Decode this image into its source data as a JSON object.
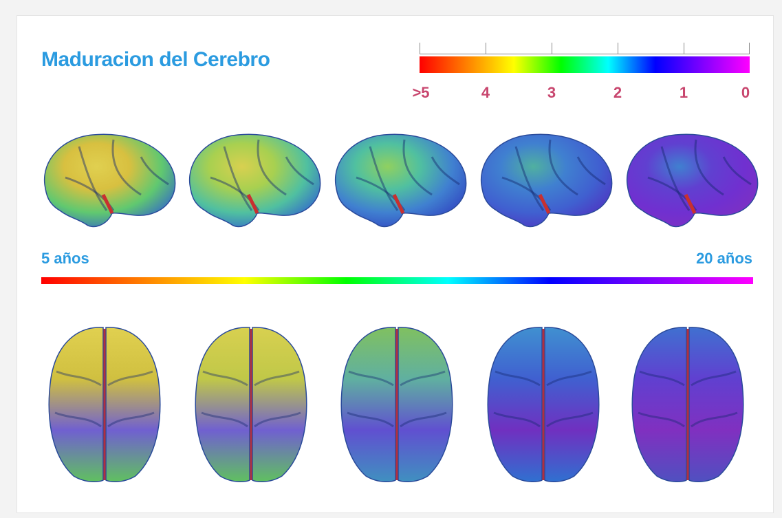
{
  "title": "Maduracion del Cerebro",
  "scale": {
    "labels": [
      ">5",
      "4",
      "3",
      "2",
      "1",
      "0"
    ],
    "gradient": [
      "#ff0000",
      "#ff8000",
      "#ffff00",
      "#00ff00",
      "#00ffff",
      "#0000ff",
      "#8000ff",
      "#ff00ff"
    ]
  },
  "ages": {
    "start": "5 años",
    "end": "20 años"
  },
  "colors": {
    "title": "#2b9be0",
    "scale_labels": "#c8466e",
    "age_labels": "#2b9be0"
  },
  "side_views": [
    {
      "stops": [
        "#e0d050",
        "#d8c040",
        "#60c870",
        "#3060d0"
      ]
    },
    {
      "stops": [
        "#d8d050",
        "#a8d050",
        "#50c0a0",
        "#3060d0"
      ]
    },
    {
      "stops": [
        "#90d060",
        "#50c0a0",
        "#4080d0",
        "#3040c0"
      ]
    },
    {
      "stops": [
        "#50b0a0",
        "#4080d0",
        "#4060d0",
        "#5030c0"
      ]
    },
    {
      "stops": [
        "#4080d0",
        "#6040d0",
        "#7030d0",
        "#8030c0"
      ]
    }
  ],
  "top_views": [
    {
      "stops": [
        "#e0d050",
        "#d0c040",
        "#7060d0",
        "#60c060"
      ]
    },
    {
      "stops": [
        "#d8d050",
        "#c0c848",
        "#7060d0",
        "#60c060"
      ]
    },
    {
      "stops": [
        "#80c060",
        "#60b0a0",
        "#6050d0",
        "#4090c0"
      ]
    },
    {
      "stops": [
        "#4090d0",
        "#4060d0",
        "#7030c0",
        "#3070d0"
      ]
    },
    {
      "stops": [
        "#4070d0",
        "#6040d0",
        "#8030c0",
        "#5050c0"
      ]
    }
  ]
}
